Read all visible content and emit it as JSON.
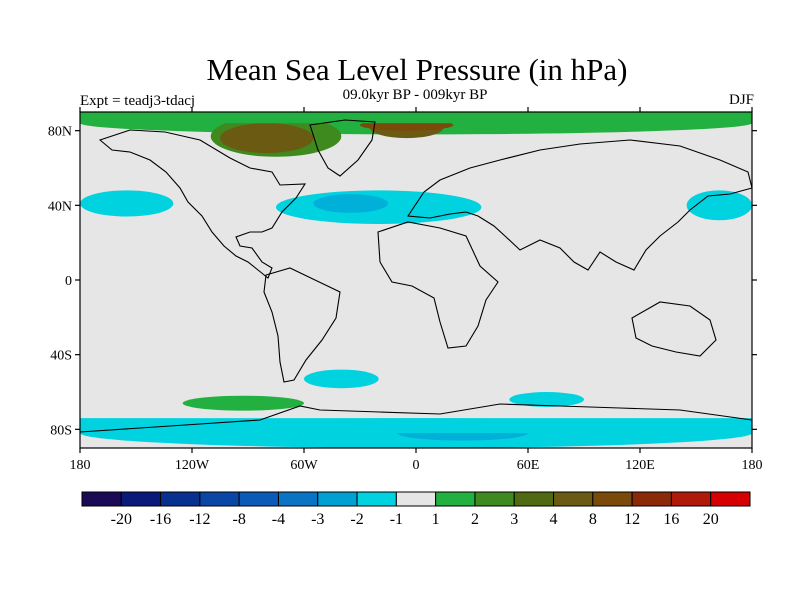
{
  "header": {
    "title": "Mean Sea Level Pressure (in hPa)",
    "subtitle": "09.0kyr BP - 009kyr BP",
    "experiment": "Expt = teadj3-tdacj",
    "season": "DJF"
  },
  "map": {
    "projection": "cylindrical equidistant",
    "lon_range": [
      -180,
      180
    ],
    "lat_range": [
      -90,
      90
    ],
    "x_ticks": [
      {
        "value": -180,
        "label": "180"
      },
      {
        "value": -120,
        "label": "120W"
      },
      {
        "value": -60,
        "label": "60W"
      },
      {
        "value": 0,
        "label": "0"
      },
      {
        "value": 60,
        "label": "60E"
      },
      {
        "value": 120,
        "label": "120E"
      },
      {
        "value": 180,
        "label": "180"
      }
    ],
    "y_ticks": [
      {
        "value": 80,
        "label": "80N"
      },
      {
        "value": 40,
        "label": "40N"
      },
      {
        "value": 0,
        "label": "0"
      },
      {
        "value": -40,
        "label": "40S"
      },
      {
        "value": -80,
        "label": "80S"
      }
    ],
    "background_color": "#e6e6e6",
    "contour_regions": [
      {
        "class": "+1 to +2",
        "color": "#22b040",
        "lon": [
          -180,
          180
        ],
        "lat": [
          78,
          90
        ]
      },
      {
        "class": "+2 to +3",
        "color": "#3f8a1e",
        "lon": [
          -110,
          -40
        ],
        "lat": [
          66,
          88
        ]
      },
      {
        "class": "+3 to +4",
        "color": "#6b5a12",
        "lon": [
          -105,
          -55
        ],
        "lat": [
          68,
          84
        ]
      },
      {
        "class": "+3 to +4",
        "color": "#6b5a12",
        "lon": [
          -25,
          15
        ],
        "lat": [
          76,
          88
        ]
      },
      {
        "class": "+4 to +8",
        "color": "#7a4a0a",
        "lon": [
          -30,
          20
        ],
        "lat": [
          80,
          86
        ]
      },
      {
        "class": "-1 to -2",
        "color": "#00d2e0",
        "lon": [
          -180,
          -130
        ],
        "lat": [
          34,
          48
        ]
      },
      {
        "class": "-1 to -2",
        "color": "#00d2e0",
        "lon": [
          -75,
          35
        ],
        "lat": [
          30,
          48
        ]
      },
      {
        "class": "-2 to -3",
        "color": "#00b0d8",
        "lon": [
          -55,
          -15
        ],
        "lat": [
          36,
          46
        ]
      },
      {
        "class": "-1 to -2",
        "color": "#00d2e0",
        "lon": [
          145,
          180
        ],
        "lat": [
          32,
          48
        ]
      },
      {
        "class": "-1 to -2",
        "color": "#00d2e0",
        "lon": [
          -60,
          -20
        ],
        "lat": [
          -58,
          -48
        ]
      },
      {
        "class": "+1 to +2",
        "color": "#22b040",
        "lon": [
          -125,
          -60
        ],
        "lat": [
          -70,
          -62
        ]
      },
      {
        "class": "-1 to -2",
        "color": "#00d2e0",
        "lon": [
          -180,
          180
        ],
        "lat": [
          -90,
          -74
        ]
      },
      {
        "class": "-2 to -3",
        "color": "#00b0d8",
        "lon": [
          -10,
          60
        ],
        "lat": [
          -86,
          -78
        ]
      },
      {
        "class": "-1 to -2",
        "color": "#00d2e0",
        "lon": [
          50,
          90
        ],
        "lat": [
          -68,
          -60
        ]
      }
    ]
  },
  "colorbar": {
    "colors": [
      "#1b0a55",
      "#0a1a7a",
      "#08308f",
      "#0a46a6",
      "#0a5ab8",
      "#0a74c4",
      "#00a0d2",
      "#00d2e0",
      "#e6e6e6",
      "#22b040",
      "#3f8a1e",
      "#4f6a12",
      "#6b5a12",
      "#7a4a0a",
      "#8a2a08",
      "#b01a08",
      "#d60000"
    ],
    "labels": [
      "-20",
      "-16",
      "-12",
      "-8",
      "-4",
      "-3",
      "-2",
      "-1",
      "1",
      "2",
      "3",
      "4",
      "8",
      "12",
      "16",
      "20"
    ]
  }
}
